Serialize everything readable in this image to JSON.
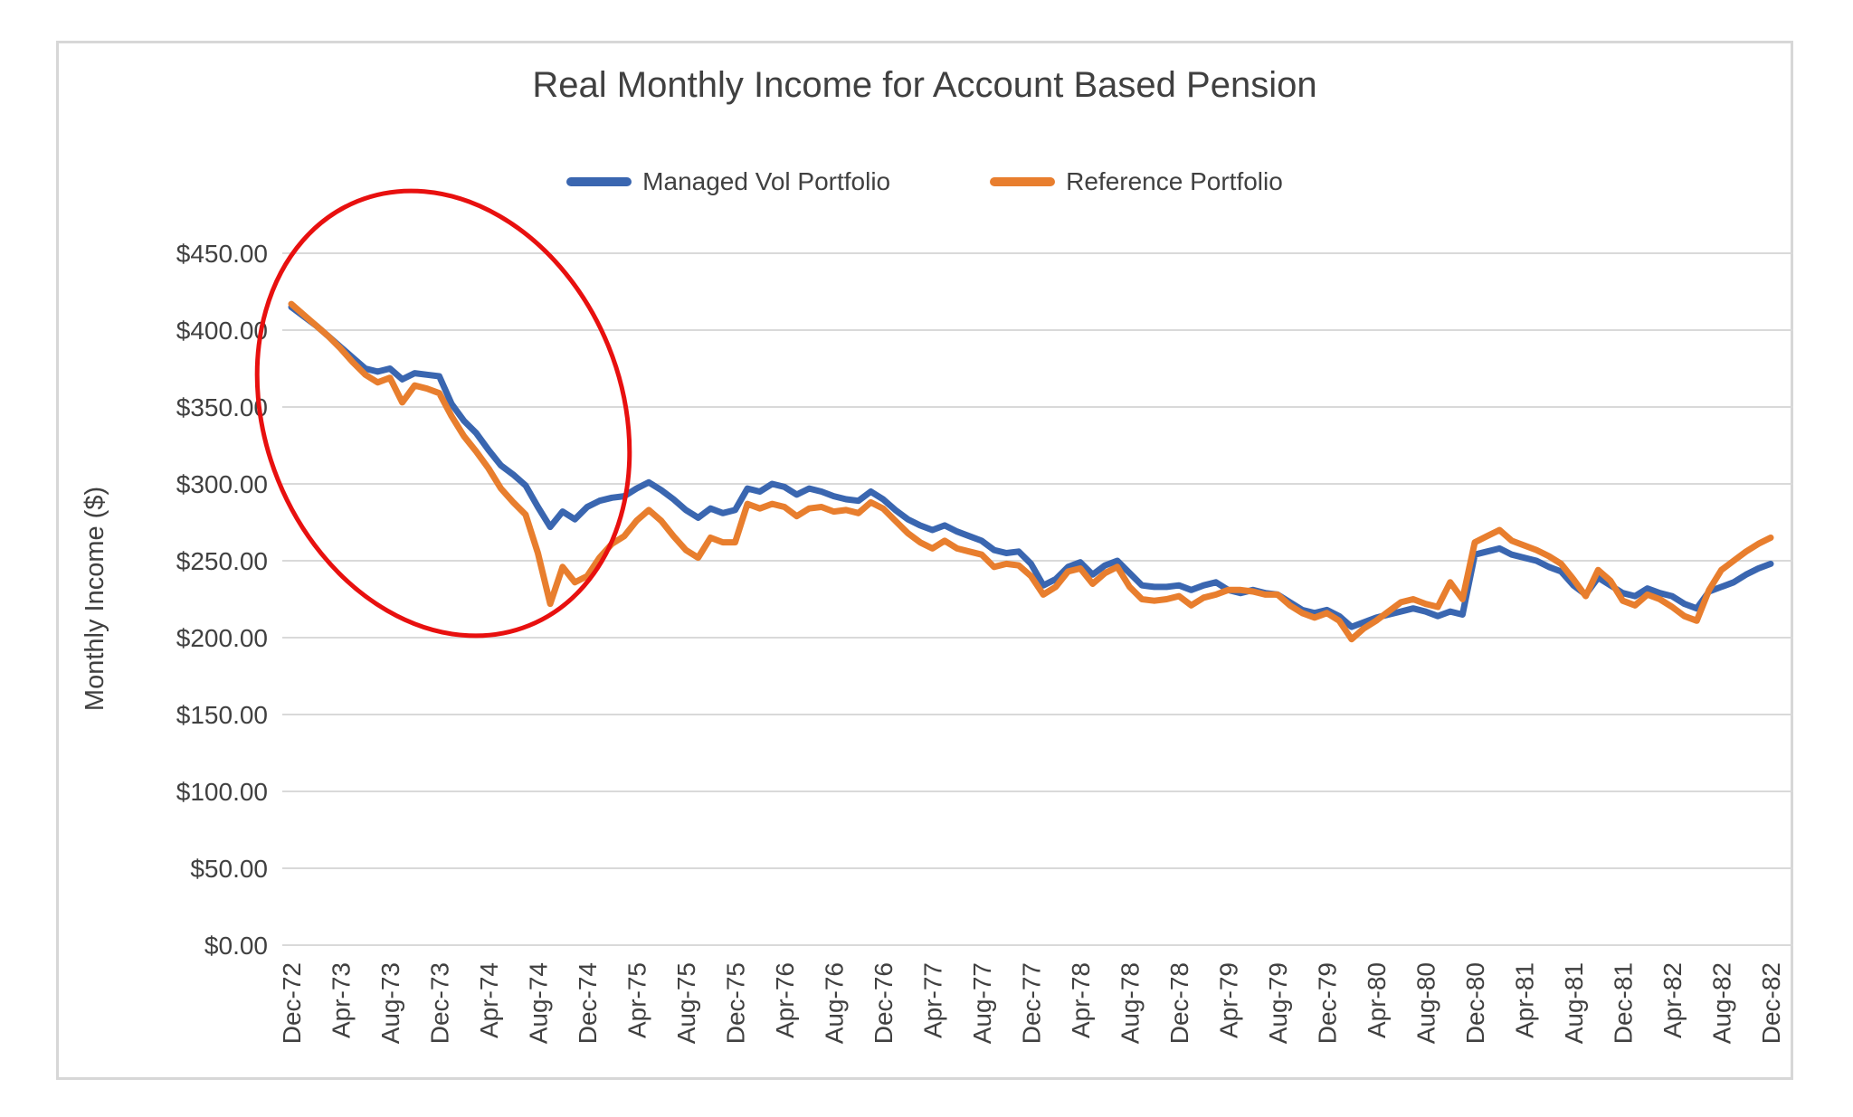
{
  "title": "Real Monthly Income for Account Based Pension",
  "y_axis": {
    "title": "Monthly Income ($)",
    "tick_labels": [
      "$0.00",
      "$50.00",
      "$100.00",
      "$150.00",
      "$200.00",
      "$250.00",
      "$300.00",
      "$350.00",
      "$400.00",
      "$450.00"
    ]
  },
  "x_axis": {
    "tick_labels": [
      "Dec-72",
      "Apr-73",
      "Aug-73",
      "Dec-73",
      "Apr-74",
      "Aug-74",
      "Dec-74",
      "Apr-75",
      "Aug-75",
      "Dec-75",
      "Apr-76",
      "Aug-76",
      "Dec-76",
      "Apr-77",
      "Aug-77",
      "Dec-77",
      "Apr-78",
      "Aug-78",
      "Dec-78",
      "Apr-79",
      "Aug-79",
      "Dec-79",
      "Apr-80",
      "Aug-80",
      "Dec-80",
      "Apr-81",
      "Aug-81",
      "Dec-81",
      "Apr-82",
      "Aug-82",
      "Dec-82"
    ],
    "months_between_ticks": 4
  },
  "annotation": {
    "shape": "ellipse",
    "color": "#e8100f",
    "highlights": "early-period decline from Dec-72 trough to late-74"
  },
  "chart_data": {
    "type": "line",
    "title": "Real Monthly Income for Account Based Pension",
    "xlabel": "",
    "ylabel": "Monthly Income ($)",
    "ylim": [
      0,
      450
    ],
    "ytick_step": 50,
    "grid": true,
    "legend_position": "top",
    "x_interval": "monthly",
    "x_start": "Dec-72",
    "x_end": "Dec-82",
    "x_tick_labels": [
      "Dec-72",
      "Apr-73",
      "Aug-73",
      "Dec-73",
      "Apr-74",
      "Aug-74",
      "Dec-74",
      "Apr-75",
      "Aug-75",
      "Dec-75",
      "Apr-76",
      "Aug-76",
      "Dec-76",
      "Apr-77",
      "Aug-77",
      "Dec-77",
      "Apr-78",
      "Aug-78",
      "Dec-78",
      "Apr-79",
      "Aug-79",
      "Dec-79",
      "Apr-80",
      "Aug-80",
      "Dec-80",
      "Apr-81",
      "Aug-81",
      "Dec-81",
      "Apr-82",
      "Aug-82",
      "Dec-82"
    ],
    "series": [
      {
        "name": "Managed Vol Portfolio",
        "color": "#3a66b0",
        "values": [
          415,
          409,
          403,
          396,
          389,
          382,
          375,
          373,
          375,
          368,
          372,
          371,
          370,
          352,
          341,
          333,
          322,
          312,
          306,
          299,
          285,
          272,
          282,
          277,
          285,
          289,
          291,
          292,
          297,
          301,
          296,
          290,
          283,
          278,
          284,
          281,
          283,
          297,
          295,
          300,
          298,
          293,
          297,
          295,
          292,
          290,
          289,
          295,
          290,
          283,
          277,
          273,
          270,
          273,
          269,
          266,
          263,
          257,
          255,
          256,
          248,
          234,
          238,
          246,
          249,
          241,
          247,
          250,
          242,
          234,
          233,
          233,
          234,
          231,
          234,
          236,
          231,
          229,
          231,
          229,
          228,
          223,
          218,
          216,
          218,
          214,
          207,
          210,
          213,
          215,
          217,
          219,
          217,
          214,
          217,
          215,
          254,
          256,
          258,
          254,
          252,
          250,
          246,
          243,
          234,
          228,
          239,
          234,
          229,
          227,
          232,
          229,
          227,
          222,
          219,
          230,
          233,
          236,
          241,
          245,
          248
        ]
      },
      {
        "name": "Reference Portfolio",
        "color": "#e87e2e",
        "values": [
          417,
          410,
          403,
          396,
          388,
          379,
          371,
          366,
          369,
          353,
          364,
          362,
          359,
          344,
          331,
          321,
          310,
          297,
          288,
          280,
          255,
          222,
          246,
          236,
          240,
          252,
          261,
          266,
          276,
          283,
          276,
          266,
          257,
          252,
          265,
          262,
          262,
          287,
          284,
          287,
          285,
          279,
          284,
          285,
          282,
          283,
          281,
          288,
          284,
          276,
          268,
          262,
          258,
          263,
          258,
          256,
          254,
          246,
          248,
          247,
          240,
          228,
          233,
          243,
          245,
          235,
          242,
          246,
          233,
          225,
          224,
          225,
          227,
          221,
          226,
          228,
          231,
          231,
          230,
          228,
          228,
          221,
          216,
          213,
          216,
          211,
          199,
          206,
          211,
          217,
          223,
          225,
          222,
          220,
          236,
          225,
          262,
          266,
          270,
          263,
          260,
          257,
          253,
          248,
          238,
          227,
          244,
          237,
          224,
          221,
          228,
          225,
          220,
          214,
          211,
          231,
          244,
          250,
          256,
          261,
          265
        ]
      }
    ]
  }
}
